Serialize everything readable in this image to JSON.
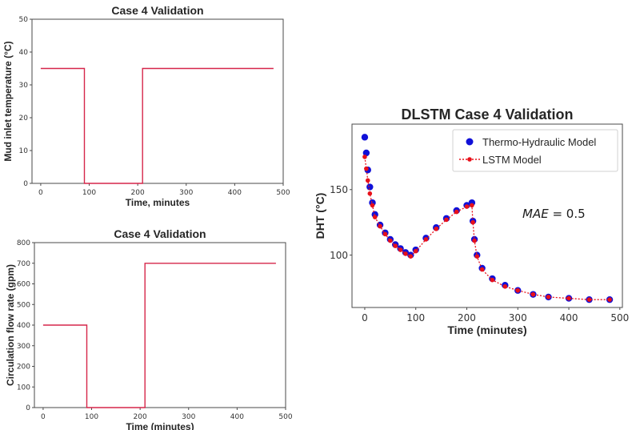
{
  "chart_data": [
    {
      "id": "top_left",
      "type": "line",
      "title": "Case 4 Validation",
      "xlabel": "Time, minutes",
      "ylabel": "Mud inlet temperature (°C)",
      "xlim": [
        -18,
        500
      ],
      "ylim": [
        0,
        50
      ],
      "xticks": [
        0,
        100,
        200,
        300,
        400,
        500
      ],
      "yticks": [
        0,
        10,
        20,
        30,
        40,
        50
      ],
      "grid": false,
      "color": "#d6264a",
      "series": [
        {
          "x": [
            0,
            90,
            90,
            210,
            210,
            480
          ],
          "y": [
            35,
            35,
            0,
            0,
            35,
            35
          ]
        }
      ]
    },
    {
      "id": "bottom_left",
      "type": "line",
      "title": "Case 4 Validation",
      "xlabel": "Time (minutes)",
      "ylabel": "Circulation flow rate (gpm)",
      "xlim": [
        -18,
        500
      ],
      "ylim": [
        0,
        800
      ],
      "xticks": [
        0,
        100,
        200,
        300,
        400,
        500
      ],
      "yticks": [
        0,
        100,
        200,
        300,
        400,
        500,
        600,
        700,
        800
      ],
      "grid": false,
      "color": "#d6264a",
      "series": [
        {
          "x": [
            0,
            90,
            90,
            210,
            210,
            480
          ],
          "y": [
            400,
            400,
            0,
            0,
            700,
            700
          ]
        }
      ]
    },
    {
      "id": "right",
      "type": "scatter",
      "title": "DLSTM Case 4 Validation",
      "xlabel": "Time (minutes)",
      "ylabel": "DHT (°C)",
      "xlim": [
        -25,
        505
      ],
      "ylim": [
        60,
        200
      ],
      "xticks": [
        0,
        100,
        200,
        300,
        400,
        500
      ],
      "yticks": [
        100,
        150
      ],
      "grid": false,
      "legend_position": "top-right",
      "annotation": {
        "prefix": "MAE",
        "value": "= 0.5"
      },
      "series": [
        {
          "name": "Thermo-Hydraulic Model",
          "style": "markers",
          "color": "#1010d8",
          "x": [
            0,
            3,
            6,
            10,
            15,
            20,
            30,
            40,
            50,
            60,
            70,
            80,
            90,
            100,
            120,
            140,
            160,
            180,
            200,
            210,
            212,
            215,
            220,
            230,
            250,
            275,
            300,
            330,
            360,
            400,
            440,
            480
          ],
          "y": [
            190,
            178,
            165,
            152,
            140,
            131,
            123,
            117,
            112,
            108,
            105,
            102,
            100,
            104,
            113,
            121,
            128,
            134,
            138,
            140,
            126,
            112,
            100,
            90,
            82,
            77,
            73,
            70,
            68,
            67,
            66,
            66
          ]
        },
        {
          "name": "LSTM Model",
          "style": "dotted-line-markers",
          "color": "#e8101a",
          "x": [
            0,
            3,
            6,
            10,
            15,
            20,
            30,
            40,
            50,
            60,
            70,
            80,
            90,
            100,
            120,
            140,
            160,
            180,
            200,
            210,
            212,
            215,
            220,
            230,
            250,
            275,
            300,
            330,
            360,
            400,
            440,
            480
          ],
          "y": [
            175,
            166,
            157,
            147,
            138,
            129,
            122,
            116,
            111,
            107,
            104,
            101,
            99,
            103,
            112,
            120,
            127,
            133,
            137,
            138,
            125,
            111,
            99,
            89,
            81,
            76,
            73,
            70,
            68,
            67,
            66,
            66
          ]
        }
      ]
    }
  ]
}
